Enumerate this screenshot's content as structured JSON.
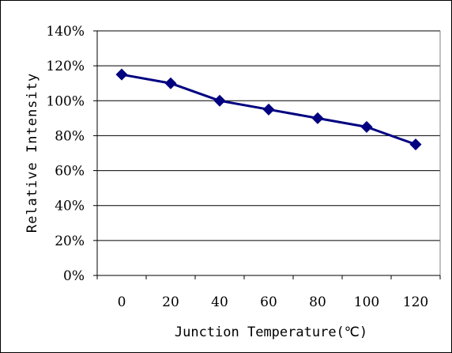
{
  "chart_data": {
    "type": "line",
    "title": "",
    "xlabel": "Junction Temperature(℃)",
    "ylabel": "Relative Intensity",
    "x": [
      0,
      20,
      40,
      60,
      80,
      100,
      120
    ],
    "x_tick_labels": [
      "0",
      "20",
      "40",
      "60",
      "80",
      "100",
      "120"
    ],
    "y_tick_labels": [
      "0%",
      "20%",
      "40%",
      "60%",
      "80%",
      "100%",
      "120%",
      "140%"
    ],
    "ylim": [
      0,
      140
    ],
    "y_unit": "%",
    "grid": "horizontal",
    "legend": "none",
    "series": [
      {
        "values": [
          115,
          110,
          100,
          95,
          90,
          85,
          75
        ]
      }
    ],
    "colors": {
      "series": "#000080",
      "grid": "#000000",
      "background": "#ffffff"
    },
    "marker": "diamond"
  }
}
